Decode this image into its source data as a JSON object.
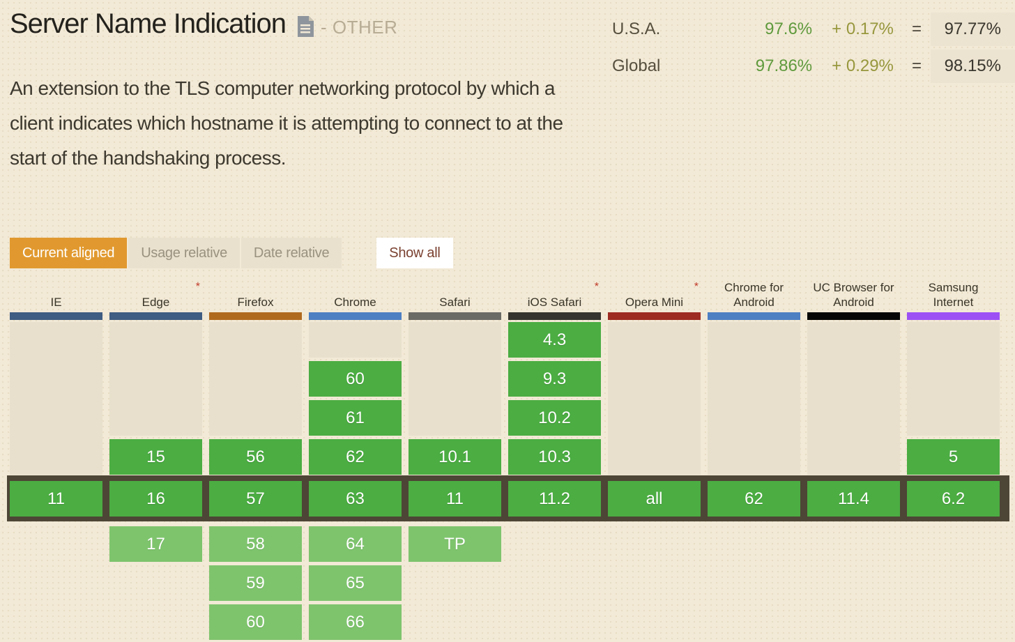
{
  "header": {
    "title": "Server Name Indication",
    "category": "- OTHER",
    "description": "An extension to the TLS computer networking protocol by which a client indicates which hostname it is attempting to connect to at the start of the handshaking process."
  },
  "stats": {
    "rows": [
      {
        "label": "U.S.A.",
        "supported": "97.6%",
        "partial": "+ 0.17%",
        "equals": "=",
        "total": "97.77%"
      },
      {
        "label": "Global",
        "supported": "97.86%",
        "partial": "+ 0.29%",
        "equals": "=",
        "total": "98.15%"
      }
    ]
  },
  "controls": {
    "buttons": [
      {
        "label": "Current aligned",
        "active": true
      },
      {
        "label": "Usage relative",
        "active": false
      },
      {
        "label": "Date relative",
        "active": false
      }
    ],
    "show_all": "Show all"
  },
  "colors": {
    "accent_orange": "#e1992f",
    "supported_green": "#4bad42",
    "future_green": "#7ec46d",
    "current_row_band": "#4d4535",
    "empty_cell": "#e8e0cc",
    "stat_green": "#5f9a3d",
    "stat_olive": "#97973d"
  },
  "table": {
    "browsers": [
      {
        "name": "IE",
        "asterisk": false,
        "bar_color": "#3f5c82",
        "cells": [
          {
            "type": "empty",
            "row": 0,
            "span": 4
          },
          {
            "type": "current",
            "row": 4,
            "label": "11"
          }
        ]
      },
      {
        "name": "Edge",
        "asterisk": true,
        "bar_color": "#3f5c82",
        "cells": [
          {
            "type": "empty",
            "row": 0,
            "span": 3
          },
          {
            "type": "past",
            "row": 3,
            "label": "15"
          },
          {
            "type": "current",
            "row": 4,
            "label": "16"
          },
          {
            "type": "future",
            "row": 5,
            "label": "17"
          }
        ]
      },
      {
        "name": "Firefox",
        "asterisk": false,
        "bar_color": "#b06a1e",
        "cells": [
          {
            "type": "empty",
            "row": 0,
            "span": 3
          },
          {
            "type": "past",
            "row": 3,
            "label": "56"
          },
          {
            "type": "current",
            "row": 4,
            "label": "57"
          },
          {
            "type": "future",
            "row": 5,
            "label": "58"
          },
          {
            "type": "future",
            "row": 6,
            "label": "59"
          },
          {
            "type": "future",
            "row": 7,
            "label": "60"
          }
        ]
      },
      {
        "name": "Chrome",
        "asterisk": false,
        "bar_color": "#4d7fc3",
        "cells": [
          {
            "type": "empty",
            "row": 0,
            "span": 1
          },
          {
            "type": "past",
            "row": 1,
            "label": "60"
          },
          {
            "type": "past",
            "row": 2,
            "label": "61"
          },
          {
            "type": "past",
            "row": 3,
            "label": "62"
          },
          {
            "type": "current",
            "row": 4,
            "label": "63"
          },
          {
            "type": "future",
            "row": 5,
            "label": "64"
          },
          {
            "type": "future",
            "row": 6,
            "label": "65"
          },
          {
            "type": "future",
            "row": 7,
            "label": "66"
          }
        ]
      },
      {
        "name": "Safari",
        "asterisk": false,
        "bar_color": "#6a6a66",
        "cells": [
          {
            "type": "empty",
            "row": 0,
            "span": 3
          },
          {
            "type": "past",
            "row": 3,
            "label": "10.1"
          },
          {
            "type": "current",
            "row": 4,
            "label": "11"
          },
          {
            "type": "future",
            "row": 5,
            "label": "TP"
          }
        ]
      },
      {
        "name": "iOS Safari",
        "asterisk": true,
        "bar_color": "#35342e",
        "cells": [
          {
            "type": "past",
            "row": 0,
            "label": "4.3"
          },
          {
            "type": "past",
            "row": 1,
            "label": "9.3"
          },
          {
            "type": "past",
            "row": 2,
            "label": "10.2"
          },
          {
            "type": "past",
            "row": 3,
            "label": "10.3"
          },
          {
            "type": "current",
            "row": 4,
            "label": "11.2"
          }
        ]
      },
      {
        "name": "Opera Mini",
        "asterisk": true,
        "bar_color": "#9d2b22",
        "cells": [
          {
            "type": "empty",
            "row": 0,
            "span": 4
          },
          {
            "type": "current",
            "row": 4,
            "label": "all"
          }
        ]
      },
      {
        "name": "Chrome for Android",
        "asterisk": false,
        "bar_color": "#4d7fc3",
        "cells": [
          {
            "type": "empty",
            "row": 0,
            "span": 4
          },
          {
            "type": "current",
            "row": 4,
            "label": "62"
          }
        ]
      },
      {
        "name": "UC Browser for Android",
        "asterisk": false,
        "bar_color": "#060606",
        "cells": [
          {
            "type": "empty",
            "row": 0,
            "span": 4
          },
          {
            "type": "current",
            "row": 4,
            "label": "11.4"
          }
        ]
      },
      {
        "name": "Samsung Internet",
        "asterisk": false,
        "bar_color": "#9c51f5",
        "cells": [
          {
            "type": "empty",
            "row": 0,
            "span": 3
          },
          {
            "type": "past",
            "row": 3,
            "label": "5"
          },
          {
            "type": "current",
            "row": 4,
            "label": "6.2"
          }
        ]
      }
    ]
  }
}
